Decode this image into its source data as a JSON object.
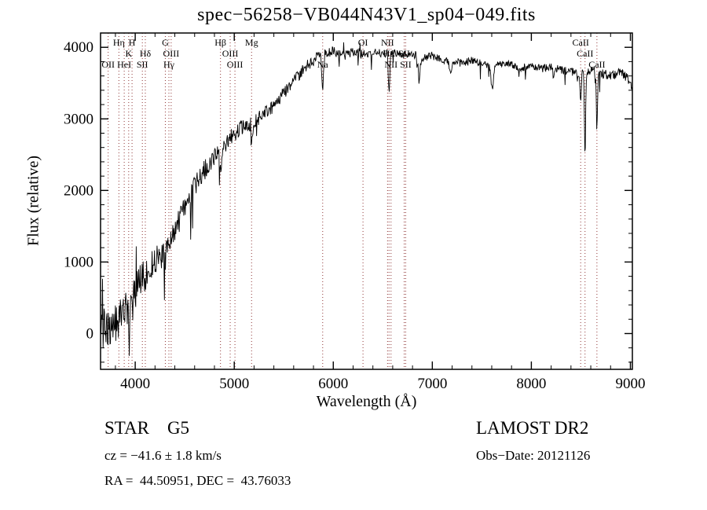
{
  "chart_data": {
    "type": "line",
    "title": "spec−56258−VB044N43V1_sp04−049.fits",
    "xlabel": "Wavelength (Å)",
    "ylabel": "Flux (relative)",
    "xlim": [
      3650,
      9020
    ],
    "ylim": [
      -500,
      4200
    ],
    "xticks": [
      4000,
      5000,
      6000,
      7000,
      8000,
      9000
    ],
    "yticks": [
      0,
      1000,
      2000,
      3000,
      4000
    ],
    "x_minor_step": 200,
    "y_minor_step": 200,
    "grid": false,
    "legend": "none",
    "background": "#ffffff",
    "line_color": "#000000",
    "marker_color": "#8f3535",
    "label_rows": [
      58,
      72,
      86
    ],
    "spectral_lines": [
      {
        "wavelength": 3727,
        "label": "OII",
        "row": 3
      },
      {
        "wavelength": 3835,
        "label": "Hη",
        "row": 1
      },
      {
        "wavelength": 3889,
        "label": "HeI",
        "row": 3
      },
      {
        "wavelength": 3934,
        "label": "K",
        "row": 2
      },
      {
        "wavelength": 3968,
        "label": "H",
        "row": 1
      },
      {
        "wavelength": 4072,
        "label": "SII",
        "row": 3
      },
      {
        "wavelength": 4102,
        "label": "Hδ",
        "row": 2
      },
      {
        "wavelength": 4304,
        "label": "G",
        "row": 1
      },
      {
        "wavelength": 4340,
        "label": "Hγ",
        "row": 3
      },
      {
        "wavelength": 4363,
        "label": "OIII",
        "row": 2
      },
      {
        "wavelength": 4861,
        "label": "Hβ",
        "row": 1
      },
      {
        "wavelength": 4959,
        "label": "OIII",
        "row": 2
      },
      {
        "wavelength": 5007,
        "label": "OIII",
        "row": 3
      },
      {
        "wavelength": 5175,
        "label": "Mg",
        "row": 1
      },
      {
        "wavelength": 5893,
        "label": "Na",
        "row": 3
      },
      {
        "wavelength": 6300,
        "label": "OI",
        "row": 1
      },
      {
        "wavelength": 6548,
        "label": "NII",
        "row": 1
      },
      {
        "wavelength": 6563,
        "label": "Hα",
        "row": 2
      },
      {
        "wavelength": 6583,
        "label": "NII",
        "row": 3
      },
      {
        "wavelength": 6716,
        "label": "SII",
        "row": 2
      },
      {
        "wavelength": 6731,
        "label": "SII",
        "row": 3
      },
      {
        "wavelength": 8498,
        "label": "CaII",
        "row": 1
      },
      {
        "wavelength": 8542,
        "label": "CaII",
        "row": 2
      },
      {
        "wavelength": 8662,
        "label": "CaII",
        "row": 3
      }
    ],
    "continuum": [
      [
        3650,
        60
      ],
      [
        3700,
        90
      ],
      [
        3750,
        120
      ],
      [
        3800,
        180
      ],
      [
        3850,
        230
      ],
      [
        3900,
        330
      ],
      [
        3950,
        380
      ],
      [
        4000,
        600
      ],
      [
        4050,
        720
      ],
      [
        4100,
        830
      ],
      [
        4150,
        950
      ],
      [
        4200,
        1020
      ],
      [
        4250,
        1070
      ],
      [
        4300,
        1180
      ],
      [
        4350,
        1300
      ],
      [
        4400,
        1450
      ],
      [
        4500,
        1750
      ],
      [
        4600,
        2050
      ],
      [
        4700,
        2280
      ],
      [
        4800,
        2480
      ],
      [
        4900,
        2620
      ],
      [
        5000,
        2800
      ],
      [
        5100,
        2900
      ],
      [
        5200,
        2960
      ],
      [
        5300,
        3060
      ],
      [
        5400,
        3200
      ],
      [
        5500,
        3380
      ],
      [
        5600,
        3520
      ],
      [
        5700,
        3680
      ],
      [
        5800,
        3820
      ],
      [
        5900,
        3900
      ],
      [
        6000,
        3930
      ],
      [
        6100,
        3890
      ],
      [
        6200,
        3930
      ],
      [
        6300,
        3900
      ],
      [
        6400,
        3940
      ],
      [
        6500,
        3910
      ],
      [
        6600,
        3930
      ],
      [
        6700,
        3890
      ],
      [
        6800,
        3910
      ],
      [
        6900,
        3850
      ],
      [
        7000,
        3880
      ],
      [
        7100,
        3830
      ],
      [
        7200,
        3800
      ],
      [
        7300,
        3780
      ],
      [
        7400,
        3820
      ],
      [
        7500,
        3770
      ],
      [
        7600,
        3730
      ],
      [
        7700,
        3770
      ],
      [
        7800,
        3760
      ],
      [
        7900,
        3710
      ],
      [
        8000,
        3750
      ],
      [
        8100,
        3700
      ],
      [
        8200,
        3730
      ],
      [
        8300,
        3680
      ],
      [
        8400,
        3660
      ],
      [
        8500,
        3640
      ],
      [
        8600,
        3670
      ],
      [
        8700,
        3640
      ],
      [
        8800,
        3600
      ],
      [
        8900,
        3650
      ],
      [
        8950,
        3600
      ],
      [
        9000,
        3520
      ],
      [
        9020,
        3350
      ]
    ],
    "noise_profile": [
      [
        3650,
        280
      ],
      [
        3800,
        300
      ],
      [
        3950,
        270
      ],
      [
        4100,
        230
      ],
      [
        4300,
        190
      ],
      [
        4500,
        160
      ],
      [
        4800,
        135
      ],
      [
        5000,
        115
      ],
      [
        5300,
        105
      ],
      [
        5600,
        95
      ],
      [
        5900,
        85
      ],
      [
        6200,
        65
      ],
      [
        6500,
        60
      ],
      [
        7000,
        55
      ],
      [
        7500,
        52
      ],
      [
        8000,
        52
      ],
      [
        8500,
        58
      ],
      [
        9020,
        70
      ]
    ],
    "absorption_dips": [
      {
        "center": 3934,
        "depth": 260,
        "width": 6
      },
      {
        "center": 3968,
        "depth": 220,
        "width": 6
      },
      {
        "center": 4102,
        "depth": 230,
        "width": 8
      },
      {
        "center": 4304,
        "depth": 180,
        "width": 12
      },
      {
        "center": 4340,
        "depth": 210,
        "width": 7
      },
      {
        "center": 4861,
        "depth": 300,
        "width": 8
      },
      {
        "center": 5175,
        "depth": 260,
        "width": 10
      },
      {
        "center": 5893,
        "depth": 520,
        "width": 8
      },
      {
        "center": 6563,
        "depth": 540,
        "width": 7
      },
      {
        "center": 6867,
        "depth": 330,
        "width": 10
      },
      {
        "center": 7186,
        "depth": 160,
        "width": 12
      },
      {
        "center": 7605,
        "depth": 340,
        "width": 12
      },
      {
        "center": 8227,
        "depth": 140,
        "width": 9
      },
      {
        "center": 8498,
        "depth": 430,
        "width": 6
      },
      {
        "center": 8542,
        "depth": 1150,
        "width": 6
      },
      {
        "center": 8662,
        "depth": 820,
        "width": 6
      }
    ]
  },
  "footer": {
    "class_label": "STAR    G5",
    "survey": "LAMOST DR2",
    "cz": "cz = −41.6 ± 1.8 km/s",
    "obs_date": "Obs−Date: 20121126",
    "coords": "RA =  44.50951, DEC =  43.76033"
  }
}
